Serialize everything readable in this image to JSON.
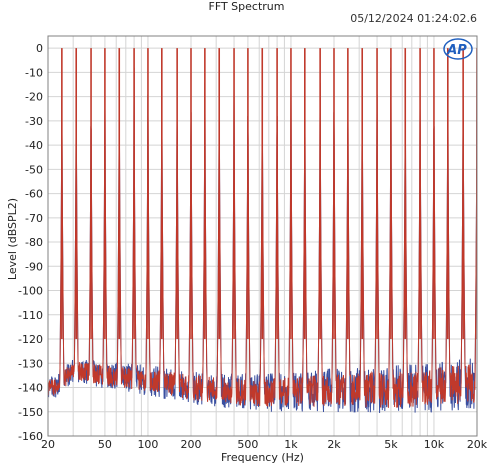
{
  "window": {
    "timestamp": "05/12/2024 01:24:02.6",
    "logo_text": "AP"
  },
  "chart_data": {
    "type": "line",
    "title": "FFT Spectrum",
    "xlabel": "Frequency (Hz)",
    "ylabel": "Level (dBSPL2)",
    "x_scale": "log",
    "xlim": [
      20,
      20000
    ],
    "ylim": [
      -160,
      5
    ],
    "grid": true,
    "x_ticks": [
      20,
      50,
      100,
      200,
      500,
      1000,
      2000,
      5000,
      10000,
      20000
    ],
    "x_tick_labels": [
      "20",
      "50",
      "100",
      "200",
      "500",
      "1k",
      "2k",
      "5k",
      "10k",
      "20k"
    ],
    "y_ticks": [
      0,
      -10,
      -20,
      -30,
      -40,
      -50,
      -60,
      -70,
      -80,
      -90,
      -100,
      -110,
      -120,
      -130,
      -140,
      -150,
      -160
    ],
    "y_tick_labels": [
      "0",
      "-10",
      "-20",
      "-30",
      "-40",
      "-50",
      "-60",
      "-70",
      "-80",
      "-90",
      "-100",
      "-110",
      "-120",
      "-130",
      "-140",
      "-150",
      "-160"
    ],
    "tone_frequencies_hz": [
      25,
      31.5,
      40,
      50,
      63,
      80,
      100,
      125,
      160,
      200,
      250,
      315,
      400,
      500,
      630,
      800,
      1000,
      1250,
      1600,
      2000,
      2500,
      3150,
      4000,
      5000,
      6300,
      8000,
      10000,
      12500,
      16000,
      20000
    ],
    "tone_level_db": 0,
    "noise_floor_db": [
      [
        22,
        -140
      ],
      [
        30,
        -133
      ],
      [
        50,
        -135
      ],
      [
        100,
        -137
      ],
      [
        200,
        -140
      ],
      [
        500,
        -142
      ],
      [
        1000,
        -142
      ],
      [
        2000,
        -141
      ],
      [
        5000,
        -141
      ],
      [
        10000,
        -140
      ],
      [
        20000,
        -138
      ]
    ],
    "series": [
      {
        "color": "#3a4fa0"
      },
      {
        "color": "#c0392b"
      }
    ],
    "colors": {
      "grid": "#d4d4d4",
      "axis": "#808080",
      "logo": "#1f5fbf"
    }
  }
}
